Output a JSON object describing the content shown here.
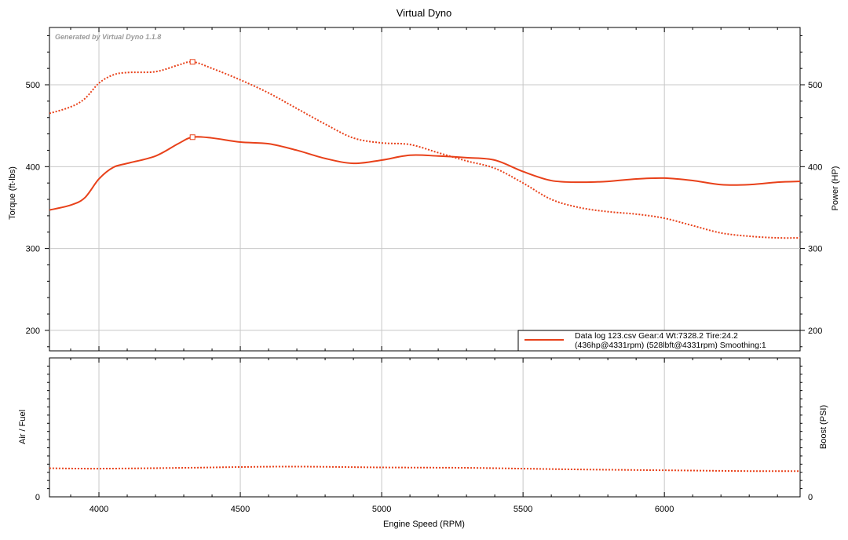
{
  "chart_data": {
    "title": "Virtual Dyno",
    "watermark": "Generated by Virtual Dyno 1.1.8",
    "xlabel": "Engine Speed (RPM)",
    "xlim": [
      3825,
      6480
    ],
    "xticks": [
      4000,
      4500,
      5000,
      5500,
      6000
    ],
    "colors": {
      "series": "#e8411a",
      "grid": "#c8c8c8",
      "axis": "#000000",
      "watermark": "#9a9a9a"
    },
    "grid": true,
    "top": {
      "type": "line",
      "ylabel_left": "Torque (ft-lbs)",
      "ylabel_right": "Power (HP)",
      "ylim": [
        175,
        570
      ],
      "yticks": [
        200,
        300,
        400,
        500
      ],
      "series": [
        {
          "name": "Power (HP)",
          "style": "solid",
          "points": [
            [
              3825,
              347
            ],
            [
              3900,
              353
            ],
            [
              3950,
              362
            ],
            [
              4000,
              385
            ],
            [
              4050,
              399
            ],
            [
              4100,
              404
            ],
            [
              4200,
              413
            ],
            [
              4280,
              428
            ],
            [
              4331,
              436
            ],
            [
              4400,
              435
            ],
            [
              4500,
              430
            ],
            [
              4600,
              428
            ],
            [
              4700,
              420
            ],
            [
              4800,
              410
            ],
            [
              4900,
              404
            ],
            [
              5000,
              408
            ],
            [
              5100,
              414
            ],
            [
              5200,
              413
            ],
            [
              5300,
              411
            ],
            [
              5400,
              408
            ],
            [
              5500,
              394
            ],
            [
              5600,
              383
            ],
            [
              5700,
              381
            ],
            [
              5800,
              382
            ],
            [
              5900,
              385
            ],
            [
              6000,
              386
            ],
            [
              6100,
              383
            ],
            [
              6200,
              378
            ],
            [
              6300,
              378
            ],
            [
              6400,
              381
            ],
            [
              6480,
              382
            ]
          ]
        },
        {
          "name": "Torque (ft-lbs)",
          "style": "dotted",
          "points": [
            [
              3825,
              465
            ],
            [
              3900,
              473
            ],
            [
              3950,
              483
            ],
            [
              4000,
              502
            ],
            [
              4050,
              512
            ],
            [
              4100,
              515
            ],
            [
              4200,
              516
            ],
            [
              4280,
              524
            ],
            [
              4331,
              528
            ],
            [
              4400,
              520
            ],
            [
              4500,
              506
            ],
            [
              4600,
              490
            ],
            [
              4700,
              471
            ],
            [
              4800,
              452
            ],
            [
              4900,
              435
            ],
            [
              5000,
              429
            ],
            [
              5100,
              427
            ],
            [
              5200,
              417
            ],
            [
              5300,
              407
            ],
            [
              5400,
              398
            ],
            [
              5500,
              380
            ],
            [
              5600,
              360
            ],
            [
              5700,
              350
            ],
            [
              5800,
              345
            ],
            [
              5900,
              342
            ],
            [
              6000,
              337
            ],
            [
              6100,
              328
            ],
            [
              6200,
              319
            ],
            [
              6300,
              315
            ],
            [
              6400,
              313
            ],
            [
              6480,
              313
            ]
          ]
        }
      ],
      "peak_markers": [
        {
          "series": "Power (HP)",
          "x": 4331,
          "y": 436
        },
        {
          "series": "Torque (ft-lbs)",
          "x": 4331,
          "y": 528
        }
      ],
      "legend": {
        "placement": "bottom-right",
        "line1": "Data log 123.csv Gear:4 Wt:7328.2 Tire:24.2",
        "line2": "(436hp@4331rpm) (528lbft@4331rpm) Smoothing:1"
      }
    },
    "bottom": {
      "type": "line",
      "ylabel_left": "Air / Fuel",
      "ylabel_right": "Boost (PSI)",
      "ylim": [
        0,
        34
      ],
      "yticks": [
        0
      ],
      "series": [
        {
          "name": "Boost (PSI)",
          "style": "dotted",
          "points": [
            [
              3825,
              7.0
            ],
            [
              4000,
              6.9
            ],
            [
              4300,
              7.1
            ],
            [
              4500,
              7.3
            ],
            [
              4700,
              7.4
            ],
            [
              5000,
              7.2
            ],
            [
              5300,
              7.1
            ],
            [
              5500,
              6.9
            ],
            [
              5700,
              6.7
            ],
            [
              6000,
              6.5
            ],
            [
              6300,
              6.3
            ],
            [
              6480,
              6.3
            ]
          ]
        }
      ]
    }
  }
}
